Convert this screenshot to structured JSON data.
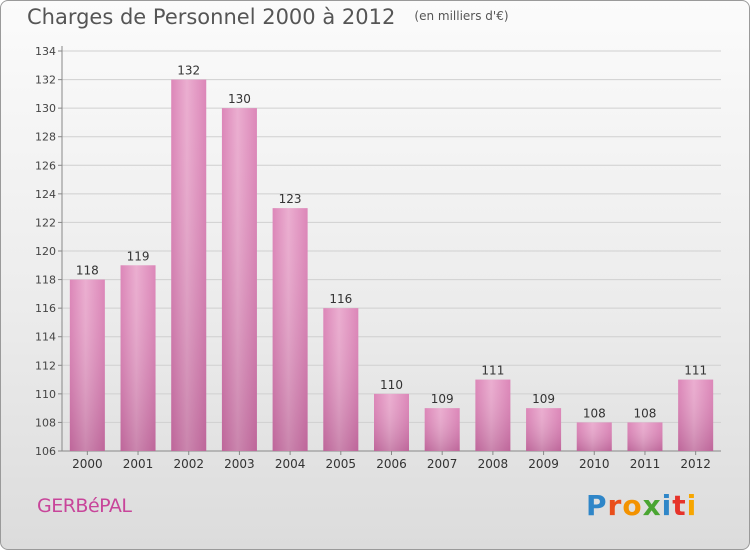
{
  "header": {
    "title": "Charges de Personnel 2000 à 2012",
    "subtitle": "(en milliers d'€)"
  },
  "footer": {
    "city": "GERBéPAL",
    "brand": "Proxiti",
    "brand_colors": [
      "#2f86c8",
      "#e94e1b",
      "#f39200",
      "#4aa532",
      "#2f86c8",
      "#e6332a",
      "#f7a600"
    ]
  },
  "chart_data": {
    "type": "bar",
    "categories": [
      "2000",
      "2001",
      "2002",
      "2003",
      "2004",
      "2005",
      "2006",
      "2007",
      "2008",
      "2009",
      "2010",
      "2011",
      "2012"
    ],
    "values": [
      118,
      119,
      132,
      130,
      123,
      116,
      110,
      109,
      111,
      109,
      108,
      108,
      111
    ],
    "data_labels": [
      "118",
      "119",
      "132",
      "130",
      "123",
      "116",
      "110",
      "109",
      "111",
      "109",
      "108",
      "108",
      "111"
    ],
    "ylim": [
      106,
      134
    ],
    "yticks": [
      "106",
      "108",
      "110",
      "112",
      "114",
      "116",
      "118",
      "120",
      "122",
      "124",
      "126",
      "128",
      "130",
      "132",
      "134"
    ],
    "grid": true,
    "bar_color": "#d97cb2",
    "bar_color_light": "#e9a7cc"
  }
}
